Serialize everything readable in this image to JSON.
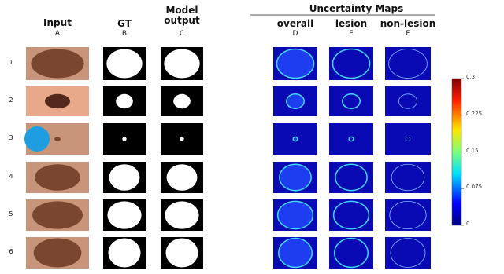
{
  "columns": [
    {
      "title": "Input",
      "letter": "A"
    },
    {
      "title": "GT",
      "letter": "B"
    },
    {
      "title": "Model output",
      "letter": "C"
    },
    {
      "title": "overall",
      "letter": "D"
    },
    {
      "title": "lesion",
      "letter": "E"
    },
    {
      "title": "non-lesion",
      "letter": "F"
    }
  ],
  "group_title": "Uncertainty Maps",
  "rows": [
    "1",
    "2",
    "3",
    "4",
    "5",
    "6"
  ],
  "colorbar": {
    "range": [
      0,
      0.3
    ],
    "ticks": [
      0.3,
      0.225,
      0.15,
      0.075,
      0
    ]
  }
}
